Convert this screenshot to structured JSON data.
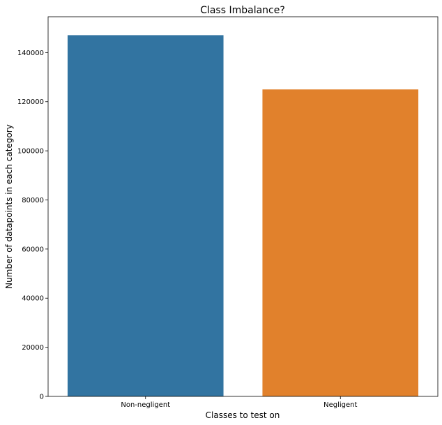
{
  "chart_data": {
    "type": "bar",
    "title": "Class Imbalance?",
    "xlabel": "Classes to test on",
    "ylabel": "Number of datapoints in each category",
    "categories": [
      "Non-negligent",
      "Negligent"
    ],
    "values": [
      147100,
      125000
    ],
    "colors": [
      "#3274a1",
      "#e1812c"
    ],
    "ylim": [
      0,
      154600
    ],
    "yticks": [
      0,
      20000,
      40000,
      60000,
      80000,
      100000,
      120000,
      140000
    ],
    "grid": false,
    "legend": "none"
  }
}
